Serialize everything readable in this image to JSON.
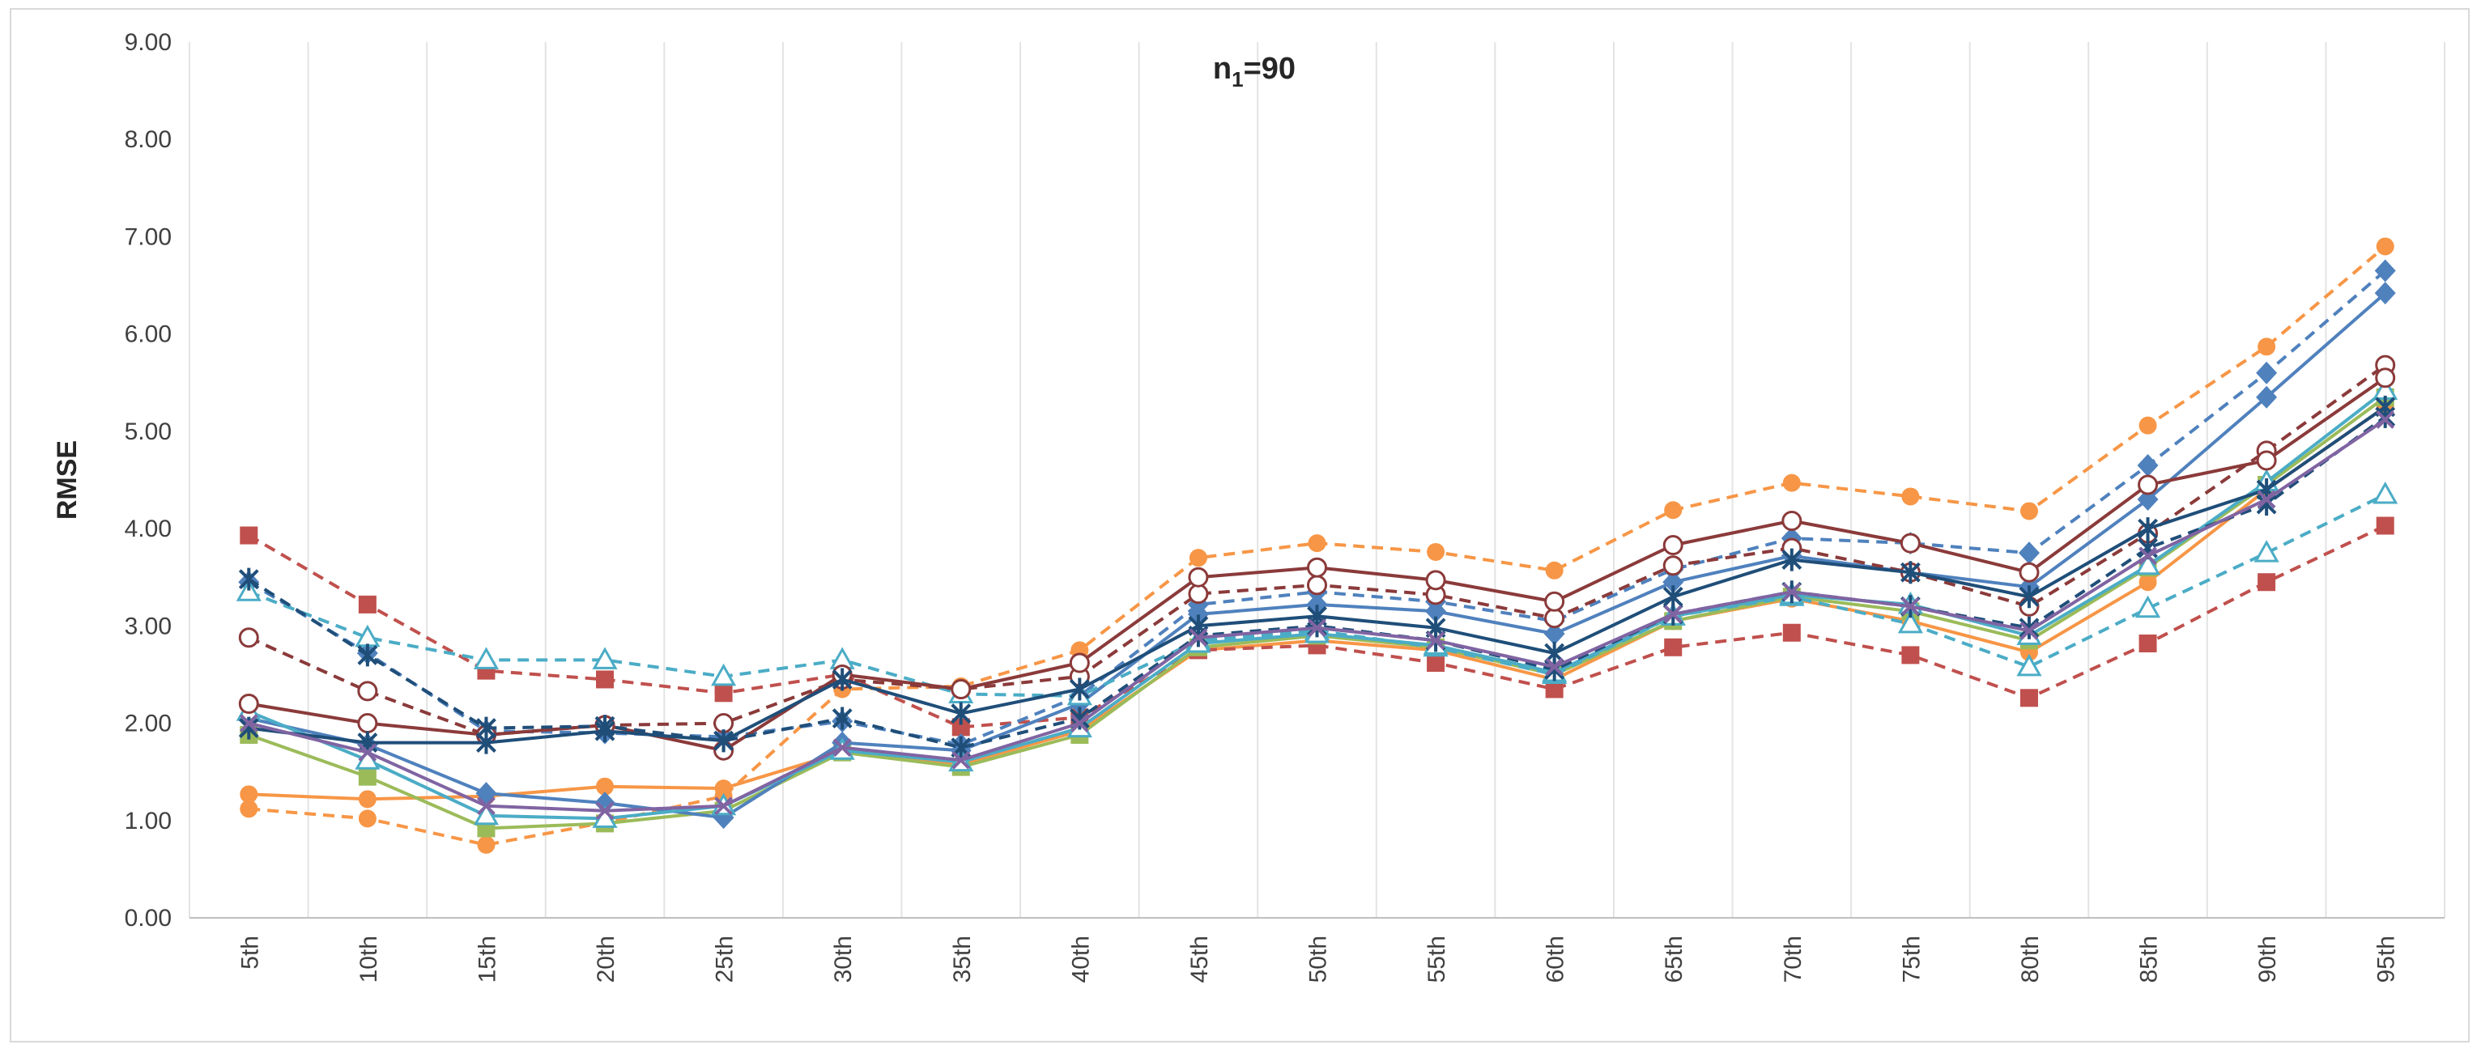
{
  "chart_data": {
    "type": "line",
    "title": "n",
    "title_subscript": "1",
    "title_suffix": "=90",
    "xlabel": "",
    "ylabel": "RMSE",
    "ylim": [
      0,
      9
    ],
    "yticks": [
      "0.00",
      "1.00",
      "2.00",
      "3.00",
      "4.00",
      "5.00",
      "6.00",
      "7.00",
      "8.00",
      "9.00"
    ],
    "categories": [
      "5th",
      "10th",
      "15th",
      "20th",
      "25th",
      "30th",
      "35th",
      "40th",
      "45th",
      "50th",
      "55th",
      "60th",
      "65th",
      "70th",
      "75th",
      "80th",
      "85th",
      "90th",
      "95th"
    ],
    "grid": "vertical",
    "legend": "none",
    "series": [
      {
        "name": "orange-circle-dashed",
        "color": "#F79646",
        "dash": true,
        "marker": "circle",
        "values": [
          1.12,
          1.02,
          0.75,
          0.98,
          1.25,
          2.35,
          2.38,
          2.75,
          3.7,
          3.85,
          3.76,
          3.57,
          4.19,
          4.47,
          4.33,
          4.18,
          5.06,
          5.87,
          6.9
        ]
      },
      {
        "name": "orange-circle-solid",
        "color": "#F79646",
        "dash": false,
        "marker": "circle",
        "values": [
          1.27,
          1.22,
          1.25,
          1.35,
          1.33,
          1.7,
          1.58,
          1.92,
          2.75,
          2.85,
          2.75,
          2.45,
          3.05,
          3.28,
          3.05,
          2.73,
          3.45,
          4.4,
          5.25
        ]
      },
      {
        "name": "red-square-dashed",
        "color": "#C0504D",
        "dash": true,
        "marker": "square",
        "values": [
          3.93,
          3.22,
          2.54,
          2.45,
          2.31,
          2.5,
          1.96,
          2.06,
          2.75,
          2.8,
          2.62,
          2.35,
          2.78,
          2.93,
          2.7,
          2.26,
          2.82,
          3.45,
          4.03
        ]
      },
      {
        "name": "green-square-solid",
        "color": "#9BBB59",
        "dash": false,
        "marker": "square",
        "values": [
          1.88,
          1.45,
          0.92,
          0.97,
          1.1,
          1.7,
          1.55,
          1.88,
          2.78,
          2.9,
          2.78,
          2.5,
          3.05,
          3.3,
          3.15,
          2.85,
          3.6,
          4.45,
          5.35
        ]
      },
      {
        "name": "blue-diamond-dashed",
        "color": "#4F81BD",
        "dash": true,
        "marker": "diamond",
        "values": [
          3.45,
          2.72,
          1.92,
          1.9,
          1.86,
          2.02,
          1.78,
          2.28,
          3.22,
          3.35,
          3.25,
          3.05,
          3.58,
          3.9,
          3.85,
          3.75,
          4.65,
          5.6,
          6.65
        ]
      },
      {
        "name": "blue-diamond-solid",
        "color": "#4F81BD",
        "dash": false,
        "marker": "diamond",
        "values": [
          2.05,
          1.78,
          1.28,
          1.18,
          1.03,
          1.8,
          1.72,
          2.2,
          3.12,
          3.22,
          3.15,
          2.92,
          3.45,
          3.72,
          3.55,
          3.4,
          4.3,
          5.35,
          6.42
        ]
      },
      {
        "name": "teal-triangle-dashed",
        "color": "#4BACC6",
        "dash": true,
        "marker": "triangle",
        "values": [
          3.35,
          2.88,
          2.65,
          2.65,
          2.48,
          2.65,
          2.3,
          2.28,
          2.85,
          2.95,
          2.78,
          2.5,
          3.1,
          3.3,
          3.02,
          2.58,
          3.18,
          3.75,
          4.35
        ]
      },
      {
        "name": "teal-triangle-solid",
        "color": "#4BACC6",
        "dash": false,
        "marker": "triangle",
        "values": [
          2.12,
          1.62,
          1.05,
          1.02,
          1.15,
          1.72,
          1.6,
          1.95,
          2.82,
          2.92,
          2.8,
          2.52,
          3.1,
          3.32,
          3.22,
          2.9,
          3.62,
          4.48,
          5.42
        ]
      },
      {
        "name": "darkred-opencircle-dashed",
        "color": "#8B3A3A",
        "dash": true,
        "marker": "opencircle",
        "values": [
          2.88,
          2.33,
          1.88,
          1.98,
          2.0,
          2.45,
          2.35,
          2.48,
          3.33,
          3.42,
          3.32,
          3.08,
          3.62,
          3.8,
          3.55,
          3.2,
          3.95,
          4.8,
          5.68
        ]
      },
      {
        "name": "darkred-opencircle-solid",
        "color": "#8B3A3A",
        "dash": false,
        "marker": "opencircle",
        "values": [
          2.2,
          2.0,
          1.88,
          1.98,
          1.72,
          2.5,
          2.35,
          2.62,
          3.5,
          3.6,
          3.47,
          3.25,
          3.83,
          4.08,
          3.85,
          3.55,
          4.45,
          4.7,
          5.55
        ]
      },
      {
        "name": "navy-star-dashed",
        "color": "#1F4E79",
        "dash": true,
        "marker": "star",
        "values": [
          3.48,
          2.7,
          1.95,
          1.97,
          1.82,
          2.05,
          1.75,
          2.05,
          2.9,
          3.0,
          2.85,
          2.55,
          3.12,
          3.35,
          3.2,
          2.98,
          3.8,
          4.25,
          5.15
        ]
      },
      {
        "name": "navy-star-solid",
        "color": "#1F4E79",
        "dash": false,
        "marker": "star",
        "values": [
          1.95,
          1.8,
          1.8,
          1.92,
          1.82,
          2.45,
          2.1,
          2.35,
          3.0,
          3.1,
          2.98,
          2.72,
          3.3,
          3.68,
          3.55,
          3.3,
          4.0,
          4.4,
          5.25
        ]
      },
      {
        "name": "purple-x-solid",
        "color": "#8064A2",
        "dash": false,
        "marker": "x",
        "values": [
          2.0,
          1.7,
          1.15,
          1.1,
          1.15,
          1.75,
          1.62,
          2.0,
          2.88,
          2.98,
          2.85,
          2.58,
          3.12,
          3.35,
          3.2,
          2.95,
          3.72,
          4.3,
          5.12
        ]
      }
    ]
  }
}
